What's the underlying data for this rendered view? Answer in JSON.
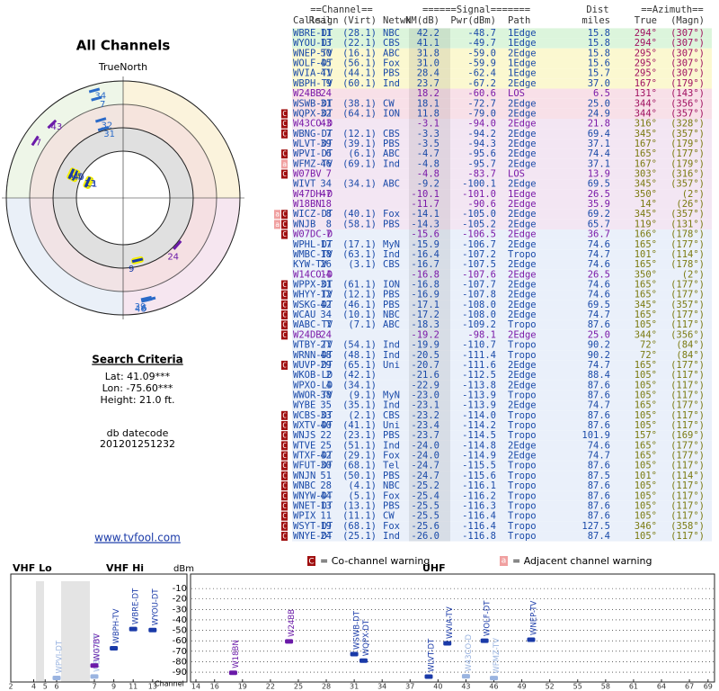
{
  "left": {
    "title": "All Channels",
    "compass": "TrueNorth",
    "criteria_title": "Search Criteria",
    "lat": "Lat: 41.09***",
    "lon": "Lon: -75.60***",
    "height": "Height: 21.0 ft.",
    "datecode_label": "db datecode",
    "datecode": "201201251232",
    "link": "www.tvfool.com"
  },
  "table": {
    "group_headers": [
      "==Channel==",
      "======Signal=======",
      "Dist",
      "==Azimuth=="
    ],
    "headers": [
      "Callsign",
      "Real",
      "(Virt)",
      "Netwk",
      "NM(dB)",
      "Pwr(dBm)",
      "Path",
      "miles",
      "True",
      "(Magn)"
    ],
    "rows": [
      [
        "WBRE-DT",
        11,
        "(28.1)",
        "NBC",
        "42.2",
        "-48.7",
        "1Edge",
        "15.8",
        "294°",
        "(307°)",
        null
      ],
      [
        "WYOU-DT",
        13,
        "(22.1)",
        "CBS",
        "41.1",
        "-49.7",
        "1Edge",
        "15.8",
        "294°",
        "(307°)",
        null
      ],
      [
        "WNEP-TV",
        50,
        "(16.1)",
        "ABC",
        "31.8",
        "-59.0",
        "2Edge",
        "15.8",
        "295°",
        "(307°)",
        null
      ],
      [
        "WOLF-DT",
        45,
        "(56.1)",
        "Fox",
        "31.0",
        "-59.9",
        "1Edge",
        "15.6",
        "295°",
        "(307°)",
        null
      ],
      [
        "WVIA-TV",
        41,
        "(44.1)",
        "PBS",
        "28.4",
        "-62.4",
        "1Edge",
        "15.7",
        "295°",
        "(307°)",
        null
      ],
      [
        "WBPH-TV",
        9,
        "(60.1)",
        "Ind",
        "23.7",
        "-67.2",
        "2Edge",
        "37.0",
        "167°",
        "(179°)",
        null
      ],
      [
        "W24BB",
        24,
        null,
        null,
        "18.2",
        "-60.6",
        "LOS",
        "6.5",
        "131°",
        "(143°)",
        null
      ],
      [
        "WSWB-DT",
        31,
        "(38.1)",
        "CW",
        "18.1",
        "-72.7",
        "2Edge",
        "25.0",
        "344°",
        "(356°)",
        null
      ],
      [
        "WQPX-DT",
        32,
        "(64.1)",
        "ION",
        "11.8",
        "-79.0",
        "2Edge",
        "24.9",
        "344°",
        "(357°)",
        "C"
      ],
      [
        "W43CO-D",
        43,
        null,
        null,
        "-3.1",
        "-94.0",
        "2Edge",
        "21.8",
        "316°",
        "(328°)",
        "C"
      ],
      [
        "WBNG-DT",
        7,
        "(12.1)",
        "CBS",
        "-3.3",
        "-94.2",
        "2Edge",
        "69.4",
        "345°",
        "(357°)",
        "C"
      ],
      [
        "WLVT-DT",
        39,
        "(39.1)",
        "PBS",
        "-3.5",
        "-94.3",
        "2Edge",
        "37.1",
        "167°",
        "(179°)",
        null
      ],
      [
        "WPVI-DT",
        6,
        "(6.1)",
        "ABC",
        "-4.7",
        "-95.6",
        "2Edge",
        "74.4",
        "165°",
        "(177°)",
        "C"
      ],
      [
        "WFMZ-TV",
        46,
        "(69.1)",
        "Ind",
        "-4.8",
        "-95.7",
        "2Edge",
        "37.1",
        "167°",
        "(179°)",
        "a"
      ],
      [
        "W07BV",
        7,
        null,
        null,
        "-4.8",
        "-83.7",
        "LOS",
        "13.9",
        "303°",
        "(316°)",
        "C"
      ],
      [
        "WIVT",
        34,
        "(34.1)",
        "ABC",
        "-9.2",
        "-100.1",
        "2Edge",
        "69.5",
        "345°",
        "(357°)",
        null
      ],
      [
        "W47DH-D",
        47,
        null,
        null,
        "-10.1",
        "-101.0",
        "1Edge",
        "26.5",
        "350°",
        "(2°)",
        null
      ],
      [
        "W18BN",
        18,
        null,
        null,
        "-11.7",
        "-90.6",
        "2Edge",
        "35.9",
        "14°",
        "(26°)",
        null
      ],
      [
        "WICZ-DT",
        8,
        "(40.1)",
        "Fox",
        "-14.1",
        "-105.0",
        "2Edge",
        "69.2",
        "345°",
        "(357°)",
        "aC"
      ],
      [
        "WNJB",
        8,
        "(58.1)",
        "PBS",
        "-14.3",
        "-105.2",
        "2Edge",
        "65.7",
        "119°",
        "(131°)",
        "aC"
      ],
      [
        "W07DC-D",
        7,
        null,
        null,
        "-15.6",
        "-106.5",
        "2Edge",
        "36.7",
        "166°",
        "(178°)",
        "C"
      ],
      [
        "WPHL-DT",
        17,
        "(17.1)",
        "MyN",
        "-15.9",
        "-106.7",
        "2Edge",
        "74.6",
        "165°",
        "(177°)",
        null
      ],
      [
        "WMBC-TV",
        18,
        "(63.1)",
        "Ind",
        "-16.4",
        "-107.2",
        "Tropo",
        "74.7",
        "101°",
        "(114°)",
        null
      ],
      [
        "KYW-TV",
        26,
        "(3.1)",
        "CBS",
        "-16.7",
        "-107.5",
        "2Edge",
        "74.6",
        "165°",
        "(178°)",
        null
      ],
      [
        "W14CO-D",
        14,
        null,
        null,
        "-16.8",
        "-107.6",
        "2Edge",
        "26.5",
        "350°",
        "(2°)",
        null
      ],
      [
        "WPPX-DT",
        31,
        "(61.1)",
        "ION",
        "-16.8",
        "-107.7",
        "2Edge",
        "74.6",
        "165°",
        "(177°)",
        "C"
      ],
      [
        "WHYY-TV",
        12,
        "(12.1)",
        "PBS",
        "-16.9",
        "-107.8",
        "2Edge",
        "74.6",
        "165°",
        "(177°)",
        "C"
      ],
      [
        "WSKG-DT",
        42,
        "(46.1)",
        "PBS",
        "-17.1",
        "-108.0",
        "2Edge",
        "69.5",
        "345°",
        "(357°)",
        "C"
      ],
      [
        "WCAU",
        34,
        "(10.1)",
        "NBC",
        "-17.2",
        "-108.0",
        "2Edge",
        "74.7",
        "165°",
        "(177°)",
        "C"
      ],
      [
        "WABC-TV",
        7,
        "(7.1)",
        "ABC",
        "-18.3",
        "-109.2",
        "Tropo",
        "87.6",
        "105°",
        "(117°)",
        "C"
      ],
      [
        "W24DB",
        24,
        null,
        null,
        "-19.2",
        "-98.1",
        "2Edge",
        "25.0",
        "344°",
        "(356°)",
        "C"
      ],
      [
        "WTBY-TV",
        27,
        "(54.1)",
        "Ind",
        "-19.9",
        "-110.7",
        "Tropo",
        "90.2",
        "72°",
        "(84°)",
        null
      ],
      [
        "WRNN-DT",
        48,
        "(48.1)",
        "Ind",
        "-20.5",
        "-111.4",
        "Tropo",
        "90.2",
        "72°",
        "(84°)",
        null
      ],
      [
        "WUVP-DT",
        29,
        "(65.1)",
        "Uni",
        "-20.7",
        "-111.6",
        "2Edge",
        "74.7",
        "165°",
        "(177°)",
        "C"
      ],
      [
        "WKOB-LD",
        2,
        "(42.1)",
        null,
        "-21.6",
        "-112.5",
        "2Edge",
        "88.4",
        "105°",
        "(117°)",
        null
      ],
      [
        "WPXO-LD",
        4,
        "(34.1)",
        null,
        "-22.9",
        "-113.8",
        "2Edge",
        "87.6",
        "105°",
        "(117°)",
        null
      ],
      [
        "WWOR-TV",
        38,
        "(9.1)",
        "MyN",
        "-23.0",
        "-113.9",
        "Tropo",
        "87.6",
        "105°",
        "(117°)",
        null
      ],
      [
        "WYBE",
        35,
        "(35.1)",
        "Ind",
        "-23.1",
        "-113.9",
        "2Edge",
        "74.7",
        "165°",
        "(177°)",
        null
      ],
      [
        "WCBS-DT",
        33,
        "(2.1)",
        "CBS",
        "-23.2",
        "-114.0",
        "Tropo",
        "87.6",
        "105°",
        "(117°)",
        "C"
      ],
      [
        "WXTV-DT",
        40,
        "(41.1)",
        "Uni",
        "-23.4",
        "-114.2",
        "Tropo",
        "87.6",
        "105°",
        "(117°)",
        "C"
      ],
      [
        "WNJS",
        22,
        "(23.1)",
        "PBS",
        "-23.7",
        "-114.5",
        "Tropo",
        "101.9",
        "157°",
        "(169°)",
        "C"
      ],
      [
        "WTVE",
        25,
        "(51.1)",
        "Ind",
        "-24.0",
        "-114.8",
        "2Edge",
        "74.6",
        "165°",
        "(177°)",
        "C"
      ],
      [
        "WTXF-DT",
        42,
        "(29.1)",
        "Fox",
        "-24.0",
        "-114.9",
        "2Edge",
        "74.7",
        "165°",
        "(177°)",
        "C"
      ],
      [
        "WFUT-DT",
        30,
        "(68.1)",
        "Tel",
        "-24.7",
        "-115.5",
        "Tropo",
        "87.6",
        "105°",
        "(117°)",
        "C"
      ],
      [
        "WNJN",
        51,
        "(50.1)",
        "PBS",
        "-24.7",
        "-115.6",
        "Tropo",
        "87.5",
        "101°",
        "(114°)",
        "C"
      ],
      [
        "WNBC",
        28,
        "(4.1)",
        "NBC",
        "-25.2",
        "-116.1",
        "Tropo",
        "87.6",
        "105°",
        "(117°)",
        "C"
      ],
      [
        "WNYW-DT",
        44,
        "(5.1)",
        "Fox",
        "-25.4",
        "-116.2",
        "Tropo",
        "87.6",
        "105°",
        "(117°)",
        "C"
      ],
      [
        "WNET-DT",
        13,
        "(13.1)",
        "PBS",
        "-25.5",
        "-116.3",
        "Tropo",
        "87.6",
        "105°",
        "(117°)",
        "C"
      ],
      [
        "WPIX",
        11,
        "(11.1)",
        "CW",
        "-25.5",
        "-116.4",
        "Tropo",
        "87.6",
        "105°",
        "(117°)",
        "C"
      ],
      [
        "WSYT-DT",
        19,
        "(68.1)",
        "Fox",
        "-25.6",
        "-116.4",
        "Tropo",
        "127.5",
        "346°",
        "(358°)",
        "C"
      ],
      [
        "WNYE-DT",
        24,
        "(25.1)",
        "Ind",
        "-26.0",
        "-116.8",
        "Tropo",
        "87.4",
        "105°",
        "(117°)",
        "C"
      ]
    ]
  },
  "legend": {
    "co_icon": "C",
    "co": "= Co-channel warning",
    "adj_icon": "a",
    "adj": "= Adjacent channel warning"
  },
  "spectrum": {
    "vhf_lo": "VHF Lo",
    "vhf_hi": "VHF Hi",
    "uhf": "UHF",
    "unit": "dBm",
    "channel_label": "Channel",
    "yticks": [
      -10,
      -20,
      -30,
      -40,
      -50,
      -60,
      -70,
      -80,
      -90
    ],
    "ylim": [
      -3,
      -96
    ],
    "vhf_lo_ticks": [
      2,
      4,
      5,
      6
    ],
    "vhf_hi_ticks": [
      7,
      9,
      11,
      13
    ],
    "uhf_ticks": [
      14,
      16,
      19,
      22,
      25,
      28,
      31,
      34,
      37,
      40,
      43,
      46,
      49,
      52,
      55,
      58,
      61,
      64,
      67,
      69
    ]
  }
}
